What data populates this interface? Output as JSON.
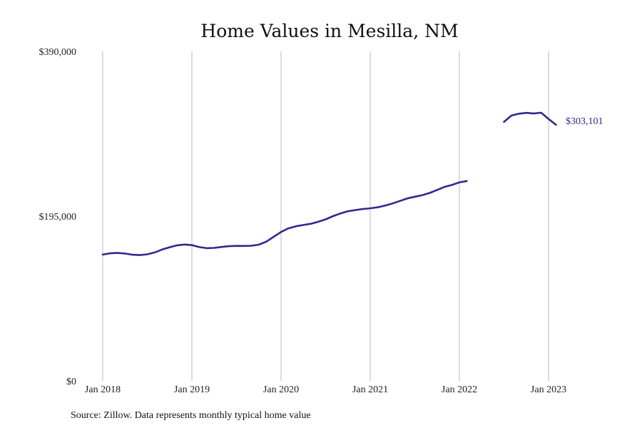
{
  "chart_data": {
    "type": "line",
    "title": "Home Values in Mesilla, NM",
    "source_note": "Source: Zillow. Data represents monthly typical home value",
    "ylim": [
      0,
      390000
    ],
    "y_ticks": [
      {
        "value": 0,
        "label": "$0"
      },
      {
        "value": 195000,
        "label": "$195,000"
      },
      {
        "value": 390000,
        "label": "$390,000"
      }
    ],
    "x_ticks": [
      {
        "value": "2018-01",
        "label": "Jan 2018"
      },
      {
        "value": "2019-01",
        "label": "Jan 2019"
      },
      {
        "value": "2020-01",
        "label": "Jan 2020"
      },
      {
        "value": "2021-01",
        "label": "Jan 2021"
      },
      {
        "value": "2022-01",
        "label": "Jan 2022"
      },
      {
        "value": "2023-01",
        "label": "Jan 2023"
      }
    ],
    "grid": "vertical",
    "legend": "none",
    "colors": {
      "line": "#2e2a8c",
      "grid": "#b8b8b8",
      "end_label": "#2e2a8c"
    },
    "end_label": "$303,101",
    "segments": [
      {
        "x": [
          "2018-01",
          "2018-02",
          "2018-03",
          "2018-04",
          "2018-05",
          "2018-06",
          "2018-07",
          "2018-08",
          "2018-09",
          "2018-10",
          "2018-11",
          "2018-12",
          "2019-01",
          "2019-02",
          "2019-03",
          "2019-04",
          "2019-05",
          "2019-06",
          "2019-07",
          "2019-08",
          "2019-09",
          "2019-10",
          "2019-11",
          "2019-12",
          "2020-01",
          "2020-02",
          "2020-03",
          "2020-04",
          "2020-05",
          "2020-06",
          "2020-07",
          "2020-08",
          "2020-09",
          "2020-10",
          "2020-11",
          "2020-12",
          "2021-01",
          "2021-02",
          "2021-03",
          "2021-04",
          "2021-05",
          "2021-06",
          "2021-07",
          "2021-08",
          "2021-09",
          "2021-10",
          "2021-11",
          "2021-12",
          "2022-01",
          "2022-02"
        ],
        "values": [
          149500,
          151000,
          151400,
          150800,
          149300,
          148900,
          149800,
          152000,
          155500,
          158200,
          160500,
          161400,
          160700,
          158400,
          157100,
          157400,
          158500,
          159500,
          159800,
          159700,
          160000,
          161200,
          164800,
          170500,
          176300,
          180600,
          183000,
          184500,
          186000,
          188300,
          191200,
          195000,
          198200,
          200800,
          202200,
          203400,
          204300,
          205500,
          207500,
          210000,
          213000,
          216000,
          218000,
          219800,
          222400,
          226000,
          229600,
          232000,
          235000,
          236500
        ]
      },
      {
        "x": [
          "2022-07",
          "2022-08",
          "2022-09",
          "2022-10",
          "2022-11",
          "2022-12",
          "2023-01",
          "2023-02"
        ],
        "values": [
          306500,
          314000,
          316200,
          317200,
          316500,
          317400,
          310000,
          303101
        ]
      }
    ]
  }
}
